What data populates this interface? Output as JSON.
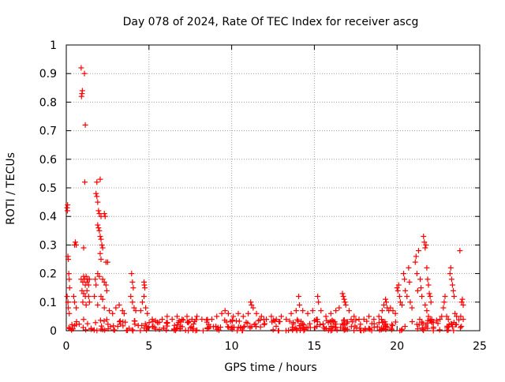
{
  "chart_data": {
    "type": "scatter",
    "title": "Day 078 of 2024, Rate Of TEC Index for receiver ascg",
    "xlabel": "GPS time / hours",
    "ylabel": "ROTI / TECUs",
    "xlim": [
      0,
      25
    ],
    "ylim": [
      0,
      1
    ],
    "x_ticks": [
      0,
      5,
      10,
      15,
      20,
      25
    ],
    "x_tick_labels": [
      "0",
      "5",
      "10",
      "15",
      "20",
      "25"
    ],
    "y_ticks": [
      0,
      0.1,
      0.2,
      0.3,
      0.4,
      0.5,
      0.6,
      0.7,
      0.8,
      0.9,
      1
    ],
    "y_tick_labels": [
      "0",
      "0.1",
      "0.2",
      "0.3",
      "0.4",
      "0.5",
      "0.6",
      "0.7",
      "0.8",
      "0.9",
      "1"
    ],
    "grid": true,
    "marker": "+",
    "marker_color": "#ff0000",
    "series": [
      {
        "name": "ROTI",
        "points": [
          [
            0.05,
            0.43
          ],
          [
            0.07,
            0.42
          ],
          [
            0.08,
            0.44
          ],
          [
            0.1,
            0.26
          ],
          [
            0.12,
            0.25
          ],
          [
            0.15,
            0.2
          ],
          [
            0.18,
            0.18
          ],
          [
            0.2,
            0.15
          ],
          [
            0.05,
            0.12
          ],
          [
            0.1,
            0.1
          ],
          [
            0.12,
            0.08
          ],
          [
            0.18,
            0.06
          ],
          [
            0.5,
            0.3
          ],
          [
            0.55,
            0.31
          ],
          [
            0.6,
            0.3
          ],
          [
            0.45,
            0.12
          ],
          [
            0.5,
            0.1
          ],
          [
            0.6,
            0.08
          ],
          [
            0.9,
            0.92
          ],
          [
            1.1,
            0.9
          ],
          [
            0.92,
            0.82
          ],
          [
            0.95,
            0.83
          ],
          [
            0.97,
            0.84
          ],
          [
            1.15,
            0.72
          ],
          [
            1.12,
            0.52
          ],
          [
            1.05,
            0.29
          ],
          [
            0.9,
            0.18
          ],
          [
            1.0,
            0.17
          ],
          [
            1.05,
            0.19
          ],
          [
            1.1,
            0.18
          ],
          [
            1.15,
            0.16
          ],
          [
            1.2,
            0.19
          ],
          [
            1.25,
            0.17
          ],
          [
            1.3,
            0.18
          ],
          [
            1.35,
            0.16
          ],
          [
            1.4,
            0.18
          ],
          [
            0.95,
            0.14
          ],
          [
            1.05,
            0.13
          ],
          [
            1.15,
            0.12
          ],
          [
            1.25,
            0.14
          ],
          [
            1.35,
            0.12
          ],
          [
            1.0,
            0.1
          ],
          [
            1.2,
            0.09
          ],
          [
            1.4,
            0.1
          ],
          [
            1.8,
            0.48
          ],
          [
            1.85,
            0.47
          ],
          [
            1.9,
            0.45
          ],
          [
            1.85,
            0.52
          ],
          [
            2.05,
            0.53
          ],
          [
            1.95,
            0.42
          ],
          [
            2.0,
            0.41
          ],
          [
            2.1,
            0.4
          ],
          [
            2.3,
            0.41
          ],
          [
            2.35,
            0.4
          ],
          [
            1.9,
            0.37
          ],
          [
            1.95,
            0.36
          ],
          [
            2.0,
            0.35
          ],
          [
            2.05,
            0.33
          ],
          [
            2.1,
            0.32
          ],
          [
            2.15,
            0.3
          ],
          [
            2.2,
            0.29
          ],
          [
            2.05,
            0.27
          ],
          [
            2.1,
            0.25
          ],
          [
            2.4,
            0.24
          ],
          [
            2.5,
            0.24
          ],
          [
            1.75,
            0.18
          ],
          [
            1.8,
            0.16
          ],
          [
            1.9,
            0.2
          ],
          [
            2.0,
            0.19
          ],
          [
            2.2,
            0.18
          ],
          [
            2.3,
            0.17
          ],
          [
            2.4,
            0.16
          ],
          [
            2.45,
            0.14
          ],
          [
            2.1,
            0.12
          ],
          [
            2.2,
            0.11
          ],
          [
            1.7,
            0.12
          ],
          [
            1.9,
            0.09
          ],
          [
            2.3,
            0.08
          ],
          [
            2.6,
            0.07
          ],
          [
            2.8,
            0.06
          ],
          [
            3.0,
            0.08
          ],
          [
            3.2,
            0.09
          ],
          [
            3.4,
            0.07
          ],
          [
            3.5,
            0.06
          ],
          [
            3.95,
            0.2
          ],
          [
            4.0,
            0.17
          ],
          [
            4.05,
            0.15
          ],
          [
            3.9,
            0.12
          ],
          [
            4.0,
            0.1
          ],
          [
            4.1,
            0.08
          ],
          [
            4.2,
            0.07
          ],
          [
            4.7,
            0.17
          ],
          [
            4.72,
            0.16
          ],
          [
            4.75,
            0.15
          ],
          [
            4.7,
            0.12
          ],
          [
            4.6,
            0.1
          ],
          [
            4.8,
            0.08
          ],
          [
            4.5,
            0.07
          ],
          [
            4.9,
            0.06
          ],
          [
            5.2,
            0.04
          ],
          [
            5.5,
            0.03
          ],
          [
            5.8,
            0.04
          ],
          [
            6.1,
            0.05
          ],
          [
            6.4,
            0.04
          ],
          [
            6.7,
            0.05
          ],
          [
            7.0,
            0.04
          ],
          [
            7.3,
            0.05
          ],
          [
            7.6,
            0.04
          ],
          [
            7.9,
            0.05
          ],
          [
            8.2,
            0.04
          ],
          [
            8.5,
            0.03
          ],
          [
            8.8,
            0.04
          ],
          [
            9.1,
            0.05
          ],
          [
            9.4,
            0.06
          ],
          [
            9.6,
            0.07
          ],
          [
            9.8,
            0.06
          ],
          [
            10.1,
            0.05
          ],
          [
            10.4,
            0.06
          ],
          [
            10.7,
            0.05
          ],
          [
            11.0,
            0.06
          ],
          [
            11.15,
            0.1
          ],
          [
            11.2,
            0.09
          ],
          [
            11.3,
            0.08
          ],
          [
            11.5,
            0.06
          ],
          [
            11.8,
            0.05
          ],
          [
            12.1,
            0.04
          ],
          [
            12.4,
            0.05
          ],
          [
            12.7,
            0.04
          ],
          [
            13.0,
            0.05
          ],
          [
            13.3,
            0.04
          ],
          [
            13.6,
            0.06
          ],
          [
            13.9,
            0.07
          ],
          [
            14.05,
            0.12
          ],
          [
            14.1,
            0.09
          ],
          [
            14.3,
            0.07
          ],
          [
            14.6,
            0.06
          ],
          [
            14.9,
            0.07
          ],
          [
            15.2,
            0.12
          ],
          [
            15.25,
            0.1
          ],
          [
            15.4,
            0.07
          ],
          [
            15.7,
            0.05
          ],
          [
            16.0,
            0.06
          ],
          [
            16.3,
            0.07
          ],
          [
            16.5,
            0.08
          ],
          [
            16.7,
            0.13
          ],
          [
            16.75,
            0.12
          ],
          [
            16.8,
            0.11
          ],
          [
            16.85,
            0.1
          ],
          [
            16.9,
            0.09
          ],
          [
            17.1,
            0.07
          ],
          [
            17.4,
            0.05
          ],
          [
            17.7,
            0.04
          ],
          [
            18.0,
            0.04
          ],
          [
            18.3,
            0.05
          ],
          [
            18.6,
            0.04
          ],
          [
            18.9,
            0.05
          ],
          [
            19.1,
            0.07
          ],
          [
            19.2,
            0.09
          ],
          [
            19.3,
            0.11
          ],
          [
            19.35,
            0.1
          ],
          [
            19.4,
            0.08
          ],
          [
            19.5,
            0.07
          ],
          [
            19.6,
            0.08
          ],
          [
            19.75,
            0.07
          ],
          [
            19.9,
            0.06
          ],
          [
            20.0,
            0.15
          ],
          [
            20.05,
            0.14
          ],
          [
            20.1,
            0.16
          ],
          [
            20.15,
            0.12
          ],
          [
            20.2,
            0.1
          ],
          [
            20.3,
            0.09
          ],
          [
            20.4,
            0.2
          ],
          [
            20.45,
            0.18
          ],
          [
            20.5,
            0.14
          ],
          [
            20.6,
            0.12
          ],
          [
            20.7,
            0.22
          ],
          [
            20.75,
            0.17
          ],
          [
            20.8,
            0.1
          ],
          [
            20.9,
            0.08
          ],
          [
            21.1,
            0.24
          ],
          [
            21.15,
            0.26
          ],
          [
            21.2,
            0.2
          ],
          [
            21.25,
            0.14
          ],
          [
            21.3,
            0.28
          ],
          [
            21.4,
            0.18
          ],
          [
            21.45,
            0.15
          ],
          [
            21.5,
            0.12
          ],
          [
            21.6,
            0.33
          ],
          [
            21.65,
            0.31
          ],
          [
            21.7,
            0.29
          ],
          [
            21.75,
            0.3
          ],
          [
            21.8,
            0.22
          ],
          [
            21.85,
            0.18
          ],
          [
            21.9,
            0.16
          ],
          [
            21.95,
            0.13
          ],
          [
            22.0,
            0.12
          ],
          [
            22.05,
            0.1
          ],
          [
            21.7,
            0.09
          ],
          [
            21.8,
            0.07
          ],
          [
            21.9,
            0.05
          ],
          [
            22.1,
            0.04
          ],
          [
            22.2,
            0.03
          ],
          [
            22.6,
            0.04
          ],
          [
            22.7,
            0.05
          ],
          [
            22.8,
            0.08
          ],
          [
            22.85,
            0.1
          ],
          [
            22.9,
            0.12
          ],
          [
            23.0,
            0.05
          ],
          [
            23.1,
            0.04
          ],
          [
            23.2,
            0.2
          ],
          [
            23.25,
            0.22
          ],
          [
            23.3,
            0.18
          ],
          [
            23.35,
            0.16
          ],
          [
            23.4,
            0.14
          ],
          [
            23.45,
            0.12
          ],
          [
            23.5,
            0.06
          ],
          [
            23.6,
            0.05
          ],
          [
            23.8,
            0.28
          ],
          [
            23.85,
            0.05
          ],
          [
            23.9,
            0.1
          ],
          [
            23.95,
            0.11
          ],
          [
            24.0,
            0.09
          ],
          [
            24.0,
            0.04
          ]
        ]
      }
    ],
    "dense_baseline": {
      "note": "dense cluster of low ROTI values across the whole day",
      "x_range": [
        0,
        24
      ],
      "y_range": [
        0,
        0.04
      ],
      "count": 320
    }
  }
}
